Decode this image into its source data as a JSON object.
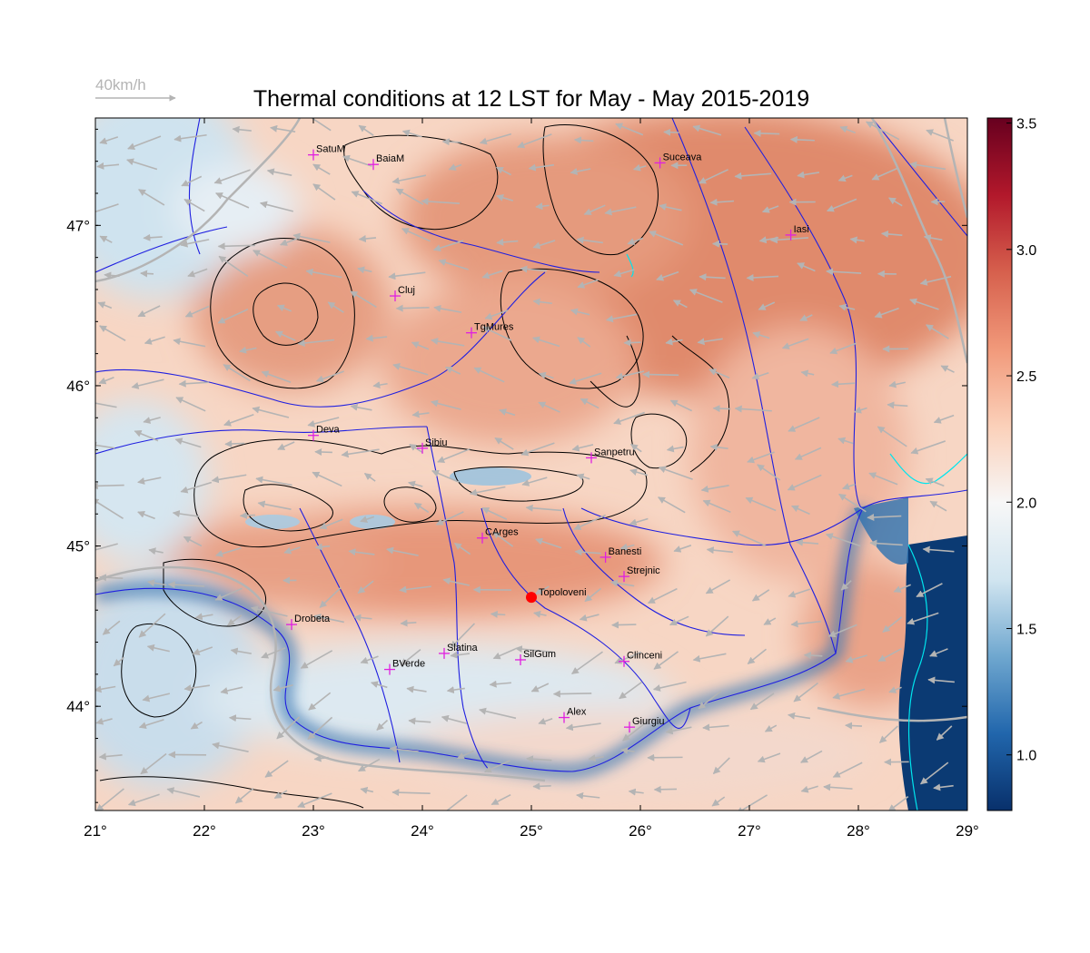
{
  "title": "Thermal conditions at 12 LST for May - May  2015-2019",
  "wind_scale": {
    "label": "40km/h",
    "speed_kmh": 40
  },
  "map": {
    "lon_range": [
      21,
      29
    ],
    "lat_range": [
      43.35,
      47.67
    ],
    "lon_ticks": [
      {
        "value": 21,
        "label": "21°"
      },
      {
        "value": 22,
        "label": "22°"
      },
      {
        "value": 23,
        "label": "23°"
      },
      {
        "value": 24,
        "label": "24°"
      },
      {
        "value": 25,
        "label": "25°"
      },
      {
        "value": 26,
        "label": "26°"
      },
      {
        "value": 27,
        "label": "27°"
      },
      {
        "value": 28,
        "label": "28°"
      },
      {
        "value": 29,
        "label": "29°"
      }
    ],
    "lat_ticks": [
      {
        "value": 44,
        "label": "44°"
      },
      {
        "value": 45,
        "label": "45°"
      },
      {
        "value": 46,
        "label": "46°"
      },
      {
        "value": 47,
        "label": "47°"
      }
    ],
    "colors": {
      "river": "#1f1fe0",
      "border": "#b4b4b4",
      "coast": "#00e5ee",
      "site_marker": "#e020e0",
      "focus_marker": "#ff0000",
      "contour": "#000000",
      "wind_arrow": "#b4b4b4"
    }
  },
  "sites": [
    {
      "name": "SatuM",
      "lon": 23.0,
      "lat": 47.44
    },
    {
      "name": "BaiaM",
      "lon": 23.55,
      "lat": 47.38
    },
    {
      "name": "Suceava",
      "lon": 26.18,
      "lat": 47.39
    },
    {
      "name": "Iasi",
      "lon": 27.38,
      "lat": 46.94
    },
    {
      "name": "Cluj",
      "lon": 23.75,
      "lat": 46.56
    },
    {
      "name": "TgMures",
      "lon": 24.45,
      "lat": 46.33
    },
    {
      "name": "Deva",
      "lon": 23.0,
      "lat": 45.69
    },
    {
      "name": "Sibiu",
      "lon": 24.0,
      "lat": 45.61
    },
    {
      "name": "Sanpetru",
      "lon": 25.55,
      "lat": 45.55
    },
    {
      "name": "CArges",
      "lon": 24.55,
      "lat": 45.05
    },
    {
      "name": "Banesti",
      "lon": 25.68,
      "lat": 44.93
    },
    {
      "name": "Strejnic",
      "lon": 25.85,
      "lat": 44.81
    },
    {
      "name": "Drobeta",
      "lon": 22.8,
      "lat": 44.51
    },
    {
      "name": "Slatina",
      "lon": 24.2,
      "lat": 44.33
    },
    {
      "name": "SilGum",
      "lon": 24.9,
      "lat": 44.29
    },
    {
      "name": "BVerde",
      "lon": 23.7,
      "lat": 44.23
    },
    {
      "name": "Clinceni",
      "lon": 25.85,
      "lat": 44.28
    },
    {
      "name": "Alex",
      "lon": 25.3,
      "lat": 43.93
    },
    {
      "name": "Giurgiu",
      "lon": 25.9,
      "lat": 43.87
    }
  ],
  "focus_site": {
    "name": "Topoloveni",
    "lon": 25.0,
    "lat": 44.68
  },
  "colorbar": {
    "min": 0.78,
    "max": 3.52,
    "ticks": [
      {
        "value": 1.0,
        "label": "1.0"
      },
      {
        "value": 1.5,
        "label": "1.5"
      },
      {
        "value": 2.0,
        "label": "2.0"
      },
      {
        "value": 2.5,
        "label": "2.5"
      },
      {
        "value": 3.0,
        "label": "3.0"
      },
      {
        "value": 3.5,
        "label": "3.5"
      }
    ],
    "stops": [
      "#08306b",
      "#2166ac",
      "#6fa7cf",
      "#d1e5f0",
      "#f7f7f7",
      "#fbd0b9",
      "#f1997a",
      "#d6604d",
      "#b2182b",
      "#67001f"
    ]
  }
}
